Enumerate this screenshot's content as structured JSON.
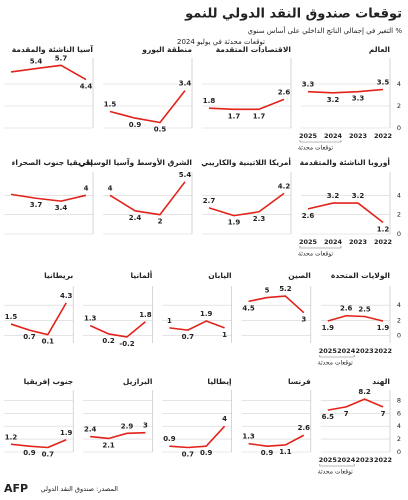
{
  "title": "توقعات صندوق النقد الدولي للنمو",
  "subtitle": "% التغير في إجمالي الناتج الداخلي على أساس سنوي",
  "update_note": "توقعات محدثة في يوليو 2024",
  "source": "المصدر: صندوق النقد الدولي",
  "logo": "AFP",
  "chart_data": [
    {
      "type": "line",
      "color": "#e2231a",
      "categories": [
        "2022",
        "2023",
        "2024",
        "2025"
      ],
      "ylim": [
        0,
        6
      ],
      "yticks": [
        0,
        2,
        4
      ],
      "grid": true,
      "annotation": "توقعات محدثة",
      "series": [
        {
          "name": "العالم",
          "values": [
            3.5,
            3.3,
            3.2,
            3.3
          ]
        },
        {
          "name": "الاقتصادات المتقدمة",
          "values": [
            2.6,
            1.7,
            1.7,
            1.8
          ]
        },
        {
          "name": "منطقة اليورو",
          "values": [
            3.4,
            0.5,
            0.9,
            1.5
          ]
        },
        {
          "name": "آسيا الناشئة والمقدمة",
          "values": [
            4.4,
            5.7,
            5.4,
            5.1
          ],
          "value_labels": [
            "4.4",
            "5.7",
            "5.4",
            null
          ]
        }
      ]
    },
    {
      "type": "line",
      "color": "#e2231a",
      "categories": [
        "2022",
        "2023",
        "2024",
        "2025"
      ],
      "ylim": [
        0,
        6
      ],
      "yticks": [
        0,
        2,
        4
      ],
      "grid": true,
      "annotation": "توقعات محدثة",
      "series": [
        {
          "name": "أوروبا الناشئة والمتقدمة",
          "values": [
            1.2,
            3.2,
            3.2,
            2.6
          ]
        },
        {
          "name": "أمريكا اللاتينية والكاريبي",
          "values": [
            4.2,
            2.3,
            1.9,
            2.7
          ]
        },
        {
          "name": "الشرق الأوسط وآسيا الوسطى",
          "values": [
            5.4,
            2,
            2.4,
            4
          ]
        },
        {
          "name": "إفريقيا جنوب الصحراء",
          "values": [
            4,
            3.4,
            3.7,
            4.1
          ],
          "value_labels": [
            "4",
            "3.4",
            "3.7",
            null
          ]
        }
      ]
    },
    {
      "type": "line",
      "color": "#e2231a",
      "categories": [
        "2022",
        "2023",
        "2024",
        "2025"
      ],
      "ylim": [
        -1,
        6
      ],
      "yticks": [
        0,
        2,
        4
      ],
      "grid": true,
      "annotation": "توقعات محدثة",
      "series": [
        {
          "name": "الولايات المتحدة",
          "values": [
            1.9,
            2.5,
            2.6,
            1.9
          ]
        },
        {
          "name": "الصين",
          "values": [
            3,
            5.2,
            5,
            4.5
          ]
        },
        {
          "name": "اليابان",
          "values": [
            1,
            1.9,
            0.7,
            1
          ]
        },
        {
          "name": "ألمانيا",
          "values": [
            1.8,
            -0.2,
            0.2,
            1.3
          ]
        },
        {
          "name": "بريطانيا",
          "values": [
            4.3,
            0.1,
            0.7,
            1.5
          ]
        }
      ]
    },
    {
      "type": "line",
      "color": "#e2231a",
      "categories": [
        "2022",
        "2023",
        "2024",
        "2025"
      ],
      "ylim": [
        0,
        9
      ],
      "yticks": [
        0,
        2,
        4,
        6,
        8
      ],
      "grid": true,
      "annotation": "توقعات محدثة",
      "series": [
        {
          "name": "الهند",
          "values": [
            7,
            8.2,
            7,
            6.5
          ]
        },
        {
          "name": "فرنسا",
          "values": [
            2.6,
            1.1,
            0.9,
            1.3
          ]
        },
        {
          "name": "إيطاليا",
          "values": [
            4,
            0.9,
            0.7,
            0.9
          ]
        },
        {
          "name": "البرازيل",
          "values": [
            3,
            2.9,
            2.1,
            2.4
          ]
        },
        {
          "name": "جنوب إفريقيا",
          "values": [
            1.9,
            0.7,
            0.9,
            1.2
          ]
        }
      ]
    }
  ]
}
